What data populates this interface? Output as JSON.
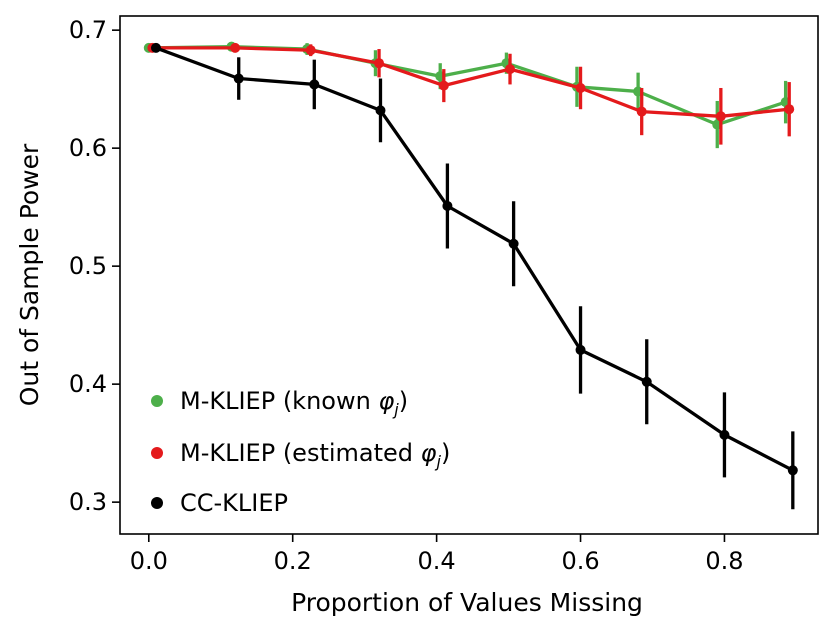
{
  "chart_data": {
    "type": "line",
    "title": "",
    "xlabel": "Proportion of Values Missing",
    "ylabel": "Out of Sample Power",
    "xlim": [
      -0.04,
      0.93
    ],
    "ylim": [
      0.273,
      0.712
    ],
    "xticks": [
      0.0,
      0.2,
      0.4,
      0.6,
      0.8
    ],
    "xtick_labels": [
      "0.0",
      "0.2",
      "0.4",
      "0.6",
      "0.8"
    ],
    "yticks": [
      0.3,
      0.4,
      0.5,
      0.6,
      0.7
    ],
    "ytick_labels": [
      "0.3",
      "0.4",
      "0.5",
      "0.6",
      "0.7"
    ],
    "grid": false,
    "legend_position": "bottom-left",
    "series": [
      {
        "name": "M-KLIEP (known φj)",
        "legend_prefix": "M-KLIEP (known ",
        "legend_symbol": "φ",
        "legend_sub": "j",
        "legend_suffix": ")",
        "color": "#4daf4a",
        "x": [
          0.0,
          0.115,
          0.22,
          0.315,
          0.405,
          0.497,
          0.595,
          0.68,
          0.79,
          0.885
        ],
        "y": [
          0.685,
          0.686,
          0.684,
          0.672,
          0.661,
          0.672,
          0.652,
          0.648,
          0.62,
          0.639
        ],
        "err": [
          0.002,
          0.003,
          0.005,
          0.011,
          0.011,
          0.009,
          0.017,
          0.016,
          0.02,
          0.018
        ]
      },
      {
        "name": "M-KLIEP (estimated φj)",
        "legend_prefix": "M-KLIEP (estimated ",
        "legend_symbol": "φ",
        "legend_sub": "j",
        "legend_suffix": ")",
        "color": "#e41a1c",
        "x": [
          0.005,
          0.12,
          0.225,
          0.32,
          0.41,
          0.502,
          0.6,
          0.685,
          0.795,
          0.89
        ],
        "y": [
          0.685,
          0.685,
          0.683,
          0.672,
          0.653,
          0.667,
          0.651,
          0.631,
          0.627,
          0.633
        ],
        "err": [
          0.003,
          0.003,
          0.005,
          0.012,
          0.014,
          0.013,
          0.018,
          0.02,
          0.024,
          0.023
        ]
      },
      {
        "name": "CC-KLIEP",
        "legend_prefix": "CC-KLIEP",
        "legend_symbol": "",
        "legend_sub": "",
        "legend_suffix": "",
        "color": "#000000",
        "x": [
          0.01,
          0.125,
          0.23,
          0.322,
          0.415,
          0.507,
          0.6,
          0.692,
          0.8,
          0.895
        ],
        "y": [
          0.685,
          0.659,
          0.654,
          0.632,
          0.551,
          0.519,
          0.429,
          0.402,
          0.357,
          0.327
        ],
        "err": [
          0.003,
          0.018,
          0.021,
          0.027,
          0.036,
          0.036,
          0.037,
          0.036,
          0.036,
          0.033
        ]
      }
    ]
  }
}
